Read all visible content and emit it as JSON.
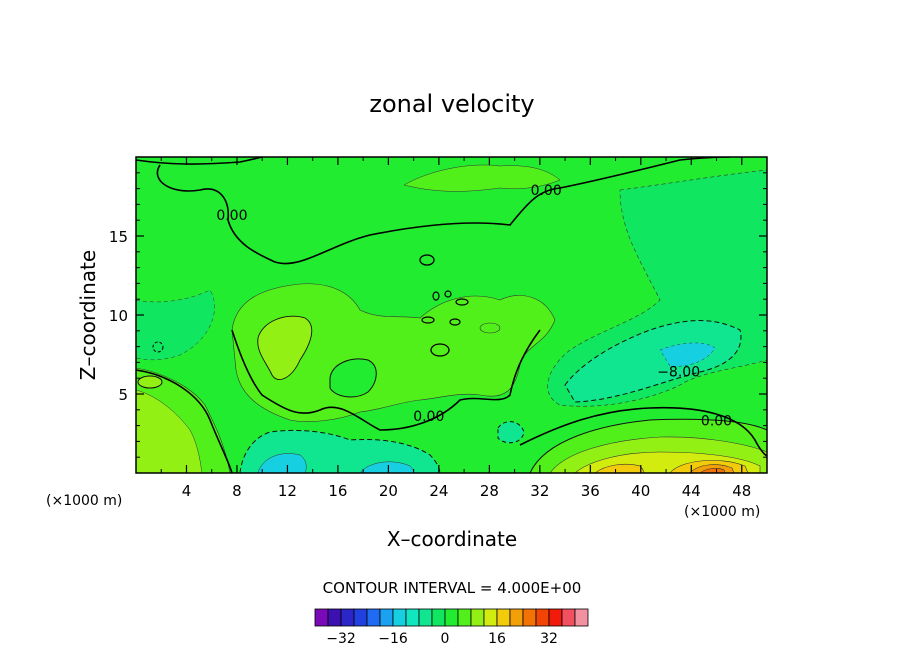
{
  "chart_data": {
    "type": "heatmap",
    "subtype": "filled-contour",
    "title": "zonal velocity",
    "xlabel": "X–coordinate",
    "ylabel": "Z–coordinate",
    "x_unit_label": "(×1000 m)",
    "z_unit_label": "(×1000 m)",
    "xlim": [
      0,
      50
    ],
    "ylim": [
      0,
      20
    ],
    "x_ticks": [
      "4",
      "8",
      "12",
      "16",
      "20",
      "24",
      "28",
      "32",
      "36",
      "40",
      "44",
      "48"
    ],
    "y_ticks": [
      "5",
      "10",
      "15"
    ],
    "contour_interval_text": "CONTOUR INTERVAL = 4.000E+00",
    "contour_labels": [
      {
        "text": "0.00",
        "x": 32.5,
        "z": 17.6
      },
      {
        "text": "0.00",
        "x": 7.6,
        "z": 16.0
      },
      {
        "text": "−8.00",
        "x": 43.0,
        "z": 6.1
      },
      {
        "text": "0.00",
        "x": 23.2,
        "z": 3.3
      },
      {
        "text": "0.00",
        "x": 46.0,
        "z": 3.0
      }
    ],
    "colorbar": {
      "levels": [
        -36,
        -32,
        -28,
        -24,
        -20,
        -16,
        -12,
        -8,
        -4,
        0,
        4,
        8,
        12,
        16,
        20,
        24,
        28,
        32,
        36
      ],
      "tick_labels": [
        "−32",
        "−16",
        "0",
        "16",
        "32"
      ],
      "tick_values": [
        -32,
        -16,
        0,
        16,
        32
      ],
      "colors": [
        "#7a0ab8",
        "#3d10b0",
        "#2a26c8",
        "#2040e0",
        "#1f6cf2",
        "#1aa2f0",
        "#16cfe0",
        "#10e6bf",
        "#10e690",
        "#10e660",
        "#22ec30",
        "#52f01a",
        "#92f014",
        "#d2ec10",
        "#f2cc0a",
        "#f2a008",
        "#f27206",
        "#f24404",
        "#f21a0a",
        "#f25060",
        "#f292a0"
      ]
    },
    "plot_background": "#22ec30"
  }
}
